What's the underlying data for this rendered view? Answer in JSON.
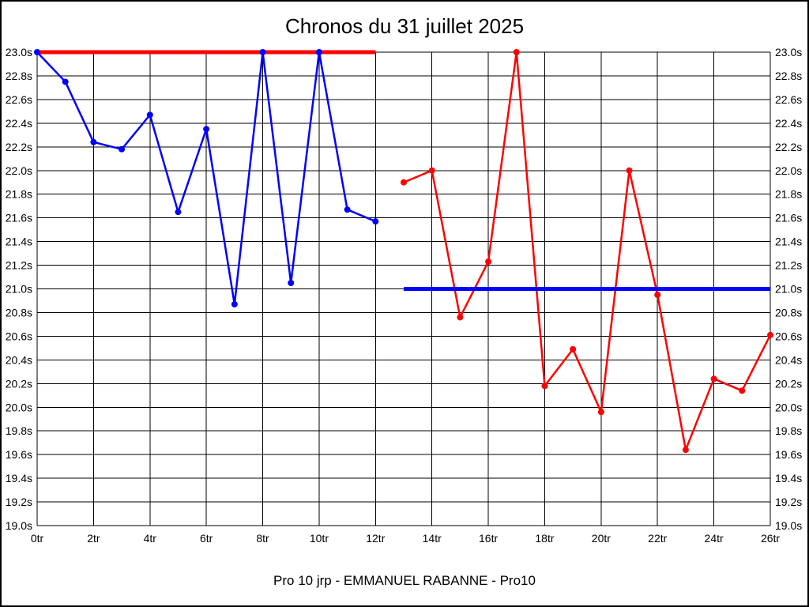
{
  "chart_data": {
    "type": "line",
    "title": "Chronos du 31 juillet 2025",
    "footer": "Pro 10 jrp - EMMANUEL RABANNE - Pro10",
    "x_unit": "tr",
    "y_unit": "s",
    "xlim": [
      0,
      26
    ],
    "ylim": [
      19.0,
      23.0
    ],
    "x_tick_step": 2,
    "y_tick_step": 0.2,
    "grid": true,
    "grid_color": "#000000",
    "background_color": "#ffffff",
    "y_axis_sides": [
      "left",
      "right"
    ],
    "legend": "none",
    "series": [
      {
        "name": "blue-series",
        "color": "#0000ff",
        "x": [
          0,
          1,
          2,
          3,
          4,
          5,
          6,
          7,
          8,
          9,
          10,
          11,
          12
        ],
        "y": [
          23.0,
          22.75,
          22.24,
          22.18,
          22.47,
          21.65,
          22.35,
          20.87,
          23.0,
          21.05,
          23.0,
          21.67,
          21.57
        ]
      },
      {
        "name": "red-series",
        "color": "#ff0000",
        "x": [
          13,
          14,
          15,
          16,
          17,
          18,
          19,
          20,
          21,
          22,
          23,
          24,
          25,
          26
        ],
        "y": [
          21.9,
          22.0,
          20.76,
          21.23,
          23.0,
          20.18,
          20.49,
          19.96,
          22.0,
          20.95,
          19.64,
          20.24,
          20.14,
          20.61
        ]
      }
    ],
    "reference_lines": [
      {
        "name": "red-reference-line",
        "color": "#ff0000",
        "y": 23.0,
        "x_start": 0,
        "x_end": 12
      },
      {
        "name": "blue-reference-line",
        "color": "#0000ff",
        "y": 21.0,
        "x_start": 13,
        "x_end": 26
      }
    ]
  }
}
